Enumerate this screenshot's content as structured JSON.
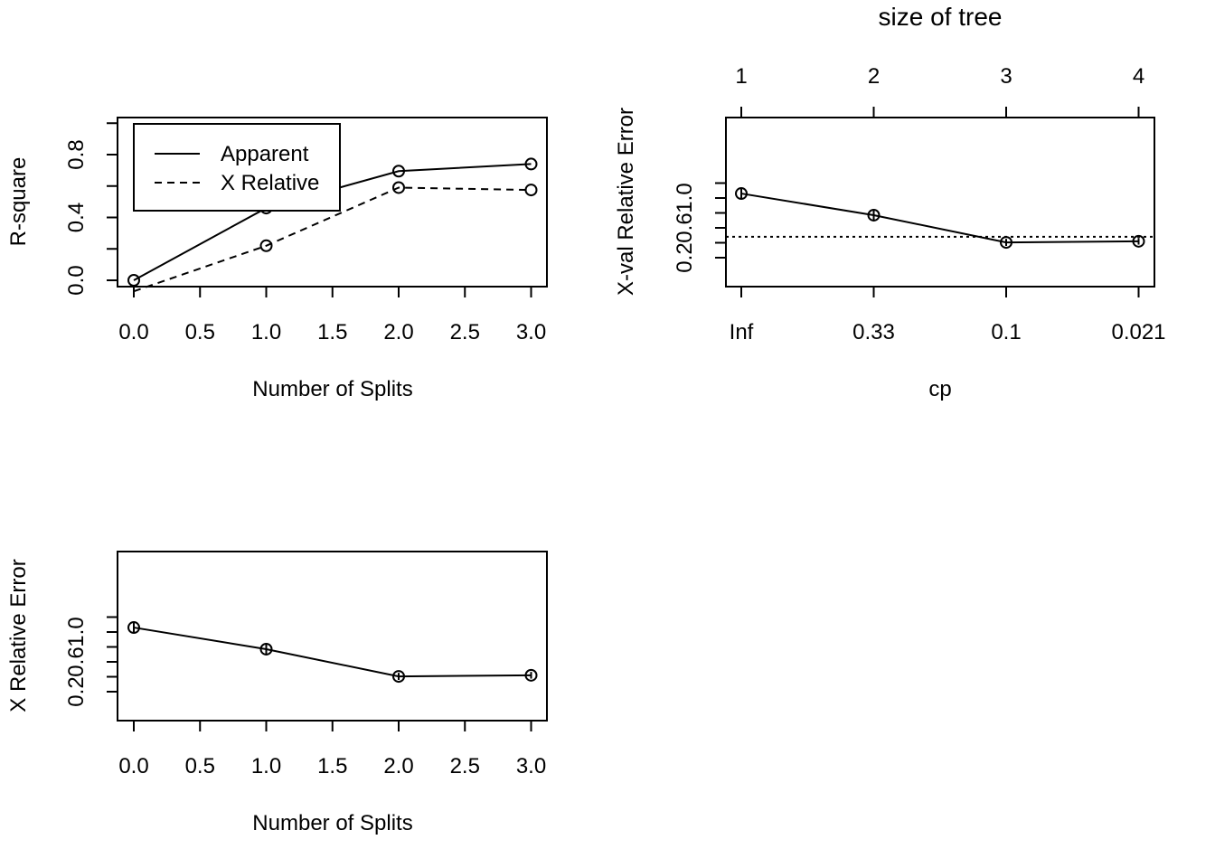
{
  "chart_data": [
    {
      "type": "line",
      "xlabel": "Number of Splits",
      "ylabel": "R-square",
      "xlim": [
        0,
        3
      ],
      "ylim": [
        0,
        0.8
      ],
      "x_ticks": [
        "0.0",
        "0.5",
        "1.0",
        "1.5",
        "2.0",
        "2.5",
        "3.0"
      ],
      "y_ticks": [
        "0.0",
        "0.4",
        "0.8"
      ],
      "legend_position": "top-left",
      "x": [
        0,
        1,
        2,
        3
      ],
      "series": [
        {
          "name": "Apparent",
          "line_style": "solid",
          "values": [
            0.0,
            0.46,
            0.695,
            0.74
          ]
        },
        {
          "name": "X Relative",
          "line_style": "dashed",
          "values": [
            -0.07,
            0.22,
            0.59,
            0.575
          ]
        }
      ]
    },
    {
      "type": "line",
      "title": "size of tree",
      "xlabel": "cp",
      "ylabel": "X-val Relative Error",
      "x_tick_labels": [
        "Inf",
        "0.33",
        "0.1",
        "0.021"
      ],
      "top_tick_labels": [
        "1",
        "2",
        "3",
        "4"
      ],
      "y_ticks": [
        "0.2",
        "0.6",
        "1.0"
      ],
      "ylim": [
        0.2,
        1.2
      ],
      "reference_line": 0.48,
      "series": [
        {
          "values": [
            1.06,
            0.77,
            0.405,
            0.42
          ],
          "errors": [
            0.14,
            0.125,
            0.095,
            0.09
          ]
        }
      ]
    },
    {
      "type": "line",
      "xlabel": "Number of Splits",
      "ylabel": "X Relative Error",
      "xlim": [
        0,
        3
      ],
      "ylim": [
        0.2,
        1.2
      ],
      "x_ticks": [
        "0.0",
        "0.5",
        "1.0",
        "1.5",
        "2.0",
        "2.5",
        "3.0"
      ],
      "y_ticks": [
        "0.2",
        "0.6",
        "1.0"
      ],
      "x": [
        0,
        1,
        2,
        3
      ],
      "series": [
        {
          "values": [
            1.06,
            0.77,
            0.405,
            0.42
          ],
          "errors": [
            0.14,
            0.125,
            0.095,
            0.09
          ]
        }
      ]
    }
  ]
}
